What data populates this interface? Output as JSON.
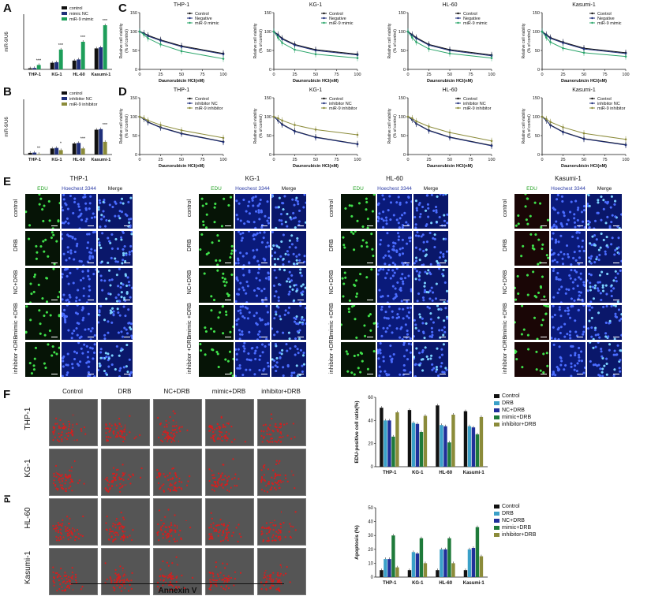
{
  "panels": {
    "A": {
      "label": "A",
      "ylabel": "miR-9/U6",
      "legend": [
        "control",
        "mimic NC",
        "miR-9 mimic"
      ],
      "colors": [
        "#111111",
        "#1f2f7a",
        "#1e9e5a"
      ],
      "categories": [
        "THP-1",
        "KG-1",
        "HL-60",
        "Kasumi-1"
      ],
      "values": [
        [
          0.2,
          0.25,
          0.8
        ],
        [
          1.2,
          1.3,
          3.6
        ],
        [
          1.6,
          1.8,
          5.0
        ],
        [
          3.8,
          4.0,
          8.0
        ]
      ],
      "sig": [
        "***",
        "***",
        "***",
        "***"
      ]
    },
    "B": {
      "label": "B",
      "ylabel": "miR-9/U6",
      "legend": [
        "control",
        "inhibitor NC",
        "miR-9 inhibitor"
      ],
      "colors": [
        "#111111",
        "#1f2f7a",
        "#8b8b3a"
      ],
      "categories": [
        "THP-1",
        "KG-1",
        "HL-60",
        "Kasumi-1"
      ],
      "values": [
        [
          0.3,
          0.35,
          0.1
        ],
        [
          1.1,
          1.2,
          0.8
        ],
        [
          2.0,
          2.1,
          1.1
        ],
        [
          4.5,
          4.6,
          2.3
        ]
      ],
      "sig": [
        "**",
        "*",
        "***",
        "***"
      ]
    },
    "C": {
      "label": "C",
      "ylabel1": "Relative cell viability",
      "ylabel2": "(% of control)",
      "xlabel": "Daunorubicin HCl(nM)",
      "legend": [
        "Control",
        "Negative",
        "miR-9 mimic"
      ],
      "colors": [
        "#111111",
        "#1f2f7a",
        "#2aa56a"
      ],
      "cells": [
        "THP-1",
        "KG-1",
        "HL-60",
        "Kasumi-1"
      ],
      "xticks": [
        "0",
        "25",
        "50",
        "75",
        "100"
      ],
      "yticks": [
        "0",
        "50",
        "100",
        "150"
      ]
    },
    "D": {
      "label": "D",
      "ylabel1": "Relative cell viability",
      "ylabel2": "(% of control)",
      "xlabel": "Daunorubicin HCl(nM)",
      "legend": [
        "Control",
        "inhibitor NC",
        "miR-9 inhibitor"
      ],
      "colors": [
        "#111111",
        "#1f2f7a",
        "#8b8b3a"
      ],
      "cells": [
        "THP-1",
        "KG-1",
        "HL-60",
        "Kasumi-1"
      ],
      "xticks": [
        "0",
        "25",
        "50",
        "75",
        "100"
      ],
      "yticks": [
        "0",
        "50",
        "100",
        "150"
      ]
    },
    "E": {
      "label": "E",
      "cells": [
        "THP-1",
        "KG-1",
        "HL-60",
        "Kasumi-1"
      ],
      "columns": [
        "EDU",
        "Hoechest 3344",
        "Merge"
      ],
      "rows": [
        "control",
        "DRB",
        "NC+DRB",
        "mimic +DRB",
        "inhibitor +DRB"
      ]
    },
    "F": {
      "label": "F",
      "columns": [
        "Control",
        "DRB",
        "NC+DRB",
        "mimic+DRB",
        "inhibitor+DRB"
      ],
      "rows": [
        "THP-1",
        "KG-1",
        "HL-60",
        "Kasumi-1"
      ],
      "ylabel": "PI",
      "xlabel": "Annexin V"
    }
  },
  "chart_data": [
    {
      "type": "line",
      "panel": "C",
      "title": "THP-1",
      "x": [
        0,
        5,
        10,
        25,
        50,
        100
      ],
      "xlabel": "Daunorubicin HCl(nM)",
      "ylabel": "Relative cell viability (% of control)",
      "ylim": [
        0,
        150
      ],
      "series": [
        {
          "name": "Control",
          "values": [
            100,
            96,
            90,
            78,
            62,
            42
          ]
        },
        {
          "name": "Negative",
          "values": [
            100,
            95,
            88,
            76,
            60,
            40
          ]
        },
        {
          "name": "miR-9 mimic",
          "values": [
            100,
            92,
            82,
            66,
            48,
            28
          ]
        }
      ]
    },
    {
      "type": "line",
      "panel": "C",
      "title": "KG-1",
      "x": [
        0,
        5,
        10,
        25,
        50,
        100
      ],
      "xlabel": "Daunorubicin HCl(nM)",
      "ylabel": "Relative cell viability (% of control)",
      "ylim": [
        0,
        150
      ],
      "series": [
        {
          "name": "Control",
          "values": [
            100,
            92,
            82,
            66,
            52,
            40
          ]
        },
        {
          "name": "Negative",
          "values": [
            100,
            90,
            80,
            64,
            50,
            38
          ]
        },
        {
          "name": "miR-9 mimic",
          "values": [
            100,
            84,
            70,
            52,
            40,
            30
          ]
        }
      ]
    },
    {
      "type": "line",
      "panel": "C",
      "title": "HL-60",
      "x": [
        0,
        5,
        10,
        25,
        50,
        100
      ],
      "xlabel": "Daunorubicin HCl(nM)",
      "ylabel": "Relative cell viability (% of control)",
      "ylim": [
        0,
        150
      ],
      "series": [
        {
          "name": "Control",
          "values": [
            100,
            92,
            84,
            66,
            52,
            38
          ]
        },
        {
          "name": "Negative",
          "values": [
            100,
            90,
            82,
            64,
            50,
            36
          ]
        },
        {
          "name": "miR-9 mimic",
          "values": [
            100,
            84,
            72,
            54,
            42,
            30
          ]
        }
      ]
    },
    {
      "type": "line",
      "panel": "C",
      "title": "Kasumi-1",
      "x": [
        0,
        5,
        10,
        25,
        50,
        100
      ],
      "xlabel": "Daunorubicin HCl(nM)",
      "ylabel": "Relative cell viability (% of control)",
      "ylim": [
        0,
        150
      ],
      "series": [
        {
          "name": "Control",
          "values": [
            100,
            92,
            84,
            72,
            56,
            44
          ]
        },
        {
          "name": "Negative",
          "values": [
            100,
            90,
            82,
            70,
            54,
            42
          ]
        },
        {
          "name": "miR-9 mimic",
          "values": [
            100,
            84,
            72,
            56,
            44,
            34
          ]
        }
      ]
    },
    {
      "type": "line",
      "panel": "D",
      "title": "THP-1",
      "x": [
        0,
        5,
        10,
        25,
        50,
        100
      ],
      "xlabel": "Daunorubicin HCl(nM)",
      "ylabel": "Relative cell viability (% of control)",
      "ylim": [
        0,
        150
      ],
      "series": [
        {
          "name": "Control",
          "values": [
            100,
            94,
            86,
            72,
            56,
            34
          ]
        },
        {
          "name": "inhibitor NC",
          "values": [
            100,
            94,
            85,
            71,
            55,
            33
          ]
        },
        {
          "name": "miR-9 inhibitor",
          "values": [
            100,
            96,
            90,
            78,
            64,
            44
          ]
        }
      ]
    },
    {
      "type": "line",
      "panel": "D",
      "title": "KG-1",
      "x": [
        0,
        5,
        10,
        25,
        50,
        100
      ],
      "xlabel": "Daunorubicin HCl(nM)",
      "ylabel": "Relative cell viability (% of control)",
      "ylim": [
        0,
        150
      ],
      "series": [
        {
          "name": "Control",
          "values": [
            100,
            90,
            80,
            62,
            46,
            28
          ]
        },
        {
          "name": "inhibitor NC",
          "values": [
            100,
            90,
            79,
            61,
            45,
            27
          ]
        },
        {
          "name": "miR-9 inhibitor",
          "values": [
            100,
            96,
            90,
            78,
            66,
            52
          ]
        }
      ]
    },
    {
      "type": "line",
      "panel": "D",
      "title": "HL-60",
      "x": [
        0,
        5,
        10,
        25,
        50,
        100
      ],
      "xlabel": "Daunorubicin HCl(nM)",
      "ylabel": "Relative cell viability (% of control)",
      "ylim": [
        0,
        150
      ],
      "series": [
        {
          "name": "Control",
          "values": [
            100,
            92,
            82,
            64,
            46,
            24
          ]
        },
        {
          "name": "inhibitor NC",
          "values": [
            100,
            92,
            81,
            63,
            45,
            23
          ]
        },
        {
          "name": "miR-9 inhibitor",
          "values": [
            100,
            96,
            88,
            74,
            58,
            36
          ]
        }
      ]
    },
    {
      "type": "line",
      "panel": "D",
      "title": "Kasumi-1",
      "x": [
        0,
        5,
        10,
        25,
        50,
        100
      ],
      "xlabel": "Daunorubicin HCl(nM)",
      "ylabel": "Relative cell viability (% of control)",
      "ylim": [
        0,
        150
      ],
      "series": [
        {
          "name": "Control",
          "values": [
            100,
            90,
            78,
            60,
            42,
            26
          ]
        },
        {
          "name": "inhibitor NC",
          "values": [
            100,
            90,
            77,
            59,
            41,
            25
          ]
        },
        {
          "name": "miR-9 inhibitor",
          "values": [
            100,
            94,
            86,
            72,
            56,
            40
          ]
        }
      ]
    },
    {
      "type": "bar",
      "panel": "F",
      "title": "",
      "ylabel": "EDU-positive cell ratio(%)",
      "ylim": [
        0,
        60
      ],
      "categories": [
        "THP-1",
        "KG-1",
        "HL-60",
        "Kasumi-1"
      ],
      "colors": [
        "#111111",
        "#3aa0c8",
        "#1f2f9a",
        "#1e7a3a",
        "#8b8b3a"
      ],
      "series": [
        {
          "name": "Control",
          "values": [
            51,
            49,
            53,
            48
          ]
        },
        {
          "name": "DRB",
          "values": [
            40,
            38,
            36,
            35
          ]
        },
        {
          "name": "NC+DRB",
          "values": [
            40,
            37,
            35,
            34
          ]
        },
        {
          "name": "mimic+DRB",
          "values": [
            26,
            30,
            21,
            28
          ]
        },
        {
          "name": "inhibitor+DRB",
          "values": [
            47,
            44,
            45,
            43
          ]
        }
      ]
    },
    {
      "type": "bar",
      "panel": "F",
      "title": "",
      "ylabel": "Apoptosis (%)",
      "ylim": [
        0,
        50
      ],
      "categories": [
        "THP-1",
        "KG-1",
        "HL-60",
        "Kasumi-1"
      ],
      "colors": [
        "#111111",
        "#3aa0c8",
        "#1f2f9a",
        "#1e7a3a",
        "#8b8b3a"
      ],
      "series": [
        {
          "name": "Control",
          "values": [
            5,
            5,
            5,
            5
          ]
        },
        {
          "name": "DRB",
          "values": [
            13,
            18,
            20,
            20
          ]
        },
        {
          "name": "NC+DRB",
          "values": [
            13,
            17,
            20,
            21
          ]
        },
        {
          "name": "mimic+DRB",
          "values": [
            30,
            28,
            28,
            36
          ]
        },
        {
          "name": "inhibitor+DRB",
          "values": [
            7,
            10,
            10,
            15
          ]
        }
      ]
    }
  ]
}
